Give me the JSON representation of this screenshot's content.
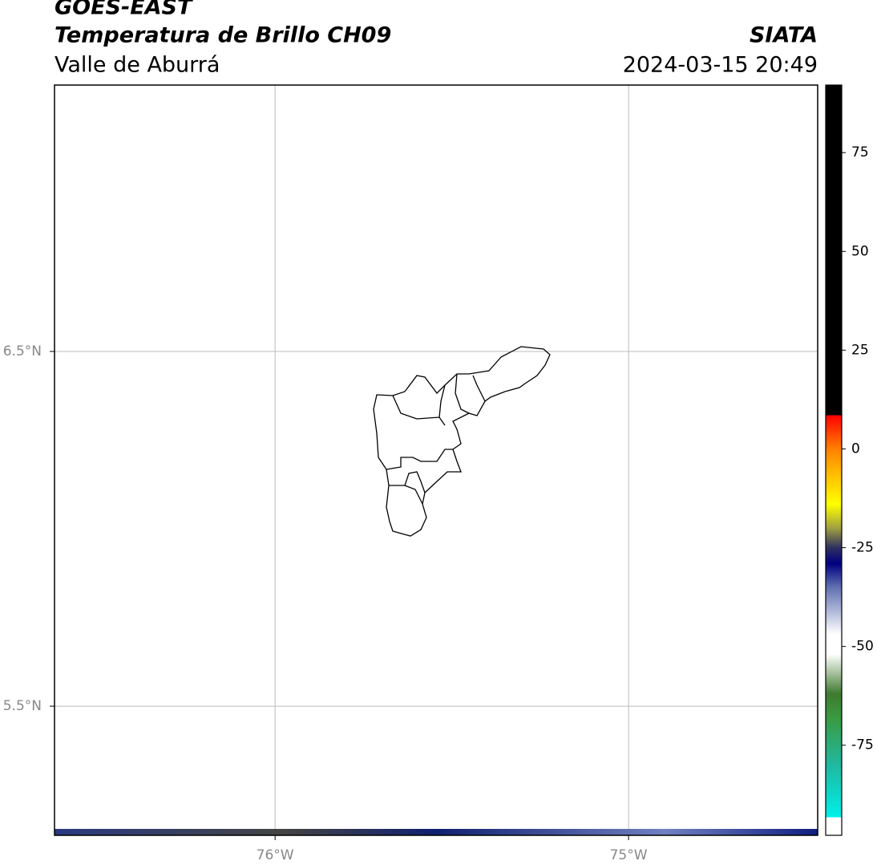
{
  "header": {
    "title": "GOES-EAST",
    "subtitle": "Temperatura de Brillo CH09",
    "source": "SIATA",
    "region": "Valle de Aburrá",
    "datetime": "2024-03-15 20:49"
  },
  "map": {
    "xlim": [
      -76.624,
      -74.465
    ],
    "ylim": [
      5.136,
      7.251
    ],
    "xticks": [
      {
        "value": -76,
        "label": "76°W"
      },
      {
        "value": -75,
        "label": "75°W"
      }
    ],
    "yticks": [
      {
        "value": 6.5,
        "label": "6.5°N"
      },
      {
        "value": 5.5,
        "label": "5.5°N"
      }
    ],
    "grid": true
  },
  "colorbar": {
    "lim": [
      -97.8,
      92.1
    ],
    "ticks": [
      75,
      50,
      25,
      0,
      -25,
      -50,
      -75
    ],
    "colors": [
      [
        -97.8,
        "#ffffff"
      ],
      [
        -93.2,
        "#ffffff"
      ],
      [
        -93.2,
        "#00f0e8"
      ],
      [
        -80,
        "#20b8a0"
      ],
      [
        -68,
        "#3a9a40"
      ],
      [
        -62,
        "#407a30"
      ],
      [
        -52,
        "#ffffff"
      ],
      [
        -47,
        "#ffffff"
      ],
      [
        -35,
        "#6070b0"
      ],
      [
        -29,
        "#000080"
      ],
      [
        -25,
        "#303060"
      ],
      [
        -20,
        "#a0a040"
      ],
      [
        -14,
        "#ffff00"
      ],
      [
        -5,
        "#ffb000"
      ],
      [
        0,
        "#ff8000"
      ],
      [
        8.5,
        "#ff0000"
      ],
      [
        8.5,
        "#000000"
      ],
      [
        92.1,
        "#000000"
      ]
    ]
  }
}
